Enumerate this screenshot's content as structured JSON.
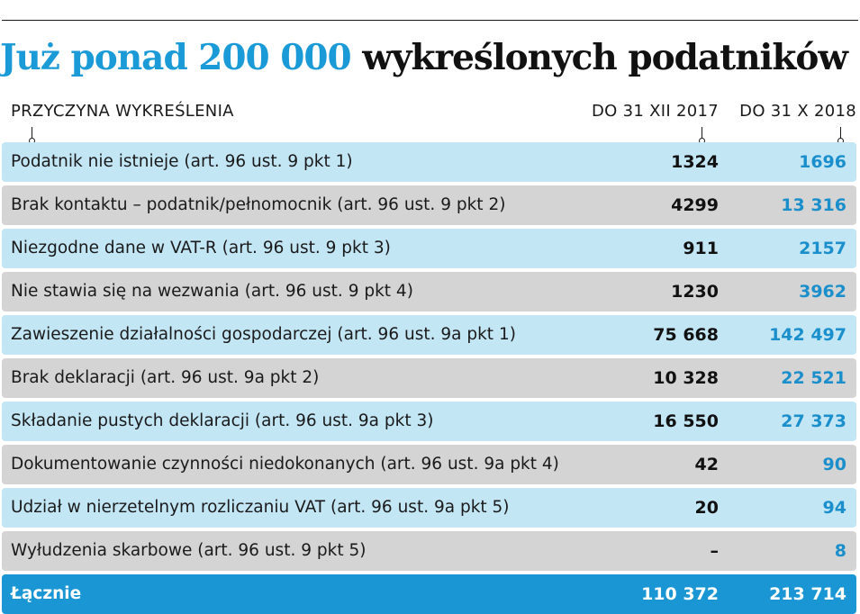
{
  "title": {
    "accent": "Już ponad 200 000",
    "rest": "wykreślonych podatników"
  },
  "colors": {
    "accent": "#1a9ad6",
    "row_blue": "#c3e6f5",
    "row_gray": "#d4d4d4",
    "total": "#1996d3"
  },
  "chart_data": {
    "type": "table",
    "columns": [
      "PRZYCZYNA WYKREŚLENIA",
      "DO 31 XII 2017",
      "DO 31 X 2018"
    ],
    "rows": [
      {
        "label": "Podatnik nie istnieje (art. 96 ust. 9 pkt 1)",
        "v2017": "1324",
        "v2018": "1696"
      },
      {
        "label": "Brak kontaktu – podatnik/pełnomocnik (art. 96 ust. 9 pkt 2)",
        "v2017": "4299",
        "v2018": "13 316"
      },
      {
        "label": "Niezgodne dane w VAT-R (art. 96 ust. 9 pkt 3)",
        "v2017": "911",
        "v2018": "2157"
      },
      {
        "label": "Nie stawia się na wezwania (art. 96 ust. 9 pkt 4)",
        "v2017": "1230",
        "v2018": "3962"
      },
      {
        "label": "Zawieszenie działalności gospodarczej (art. 96 ust. 9a pkt 1)",
        "v2017": "75 668",
        "v2018": "142 497"
      },
      {
        "label": "Brak deklaracji (art. 96 ust. 9a pkt 2)",
        "v2017": "10 328",
        "v2018": "22 521"
      },
      {
        "label": "Składanie pustych deklaracji (art. 96 ust. 9a pkt 3)",
        "v2017": "16 550",
        "v2018": "27 373"
      },
      {
        "label": "Dokumentowanie czynności niedokonanych (art. 96 ust. 9a pkt 4)",
        "v2017": "42",
        "v2018": "90"
      },
      {
        "label": "Udział w nierzetelnym rozliczaniu VAT (art. 96 ust. 9a pkt 5)",
        "v2017": "20",
        "v2018": "94"
      },
      {
        "label": "Wyłudzenia skarbowe (art. 96 ust. 9 pkt 5)",
        "v2017": "–",
        "v2018": "8"
      }
    ],
    "total": {
      "label": "Łącznie",
      "v2017": "110 372",
      "v2018": "213 714"
    }
  }
}
